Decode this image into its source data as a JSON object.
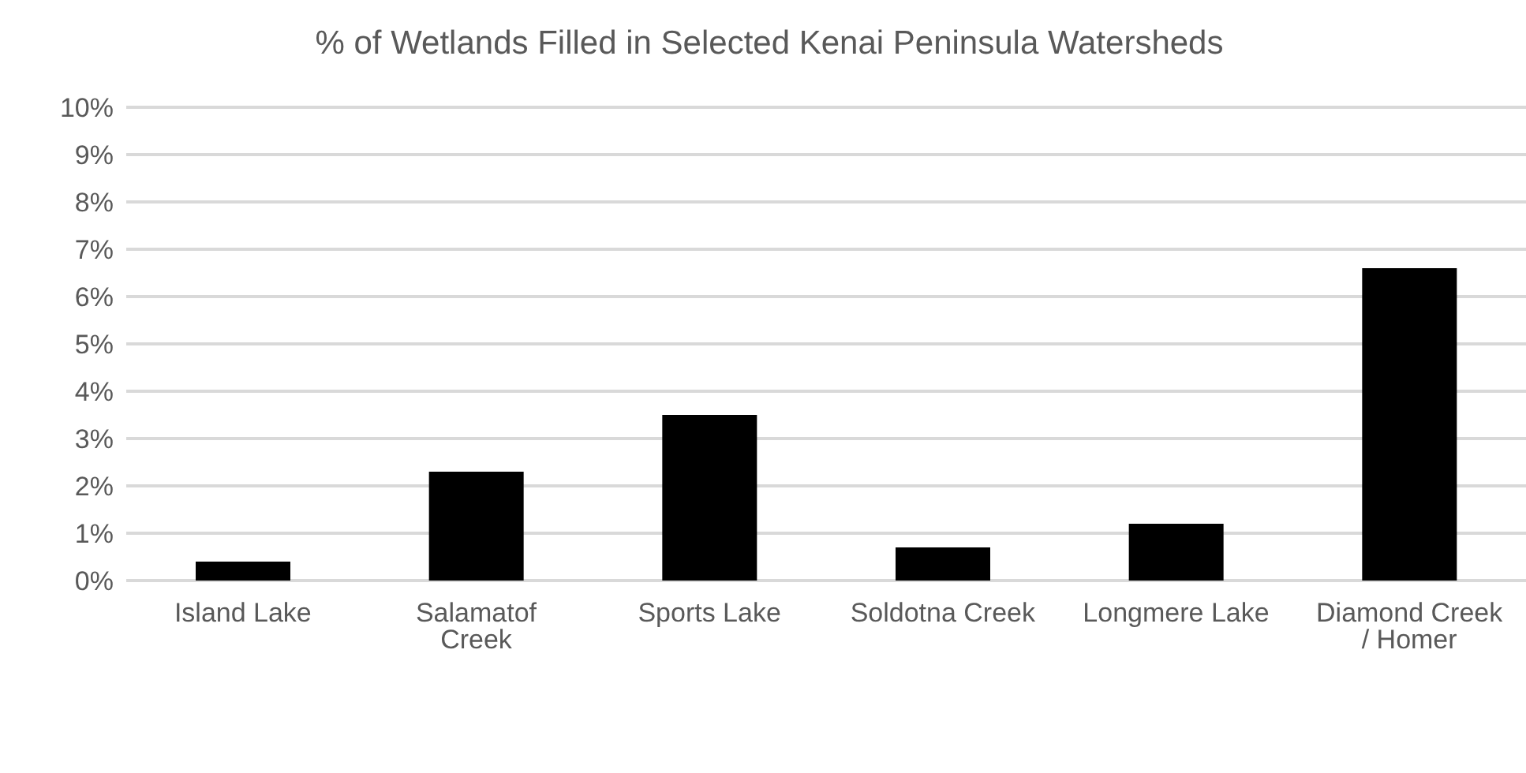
{
  "chart_data": {
    "type": "bar",
    "title": "% of Wetlands Filled in Selected Kenai Peninsula Watersheds",
    "categories": [
      "Island Lake",
      "Salamatof Creek",
      "Sports Lake",
      "Soldotna Creek",
      "Longmere Lake",
      "Diamond Creek / Homer"
    ],
    "values": [
      0.4,
      2.3,
      3.5,
      0.7,
      1.2,
      6.6
    ],
    "color": "#000000",
    "ylim": [
      0,
      10
    ],
    "yticks": [
      {
        "value": 0,
        "label": "0%"
      },
      {
        "value": 1,
        "label": "1%"
      },
      {
        "value": 2,
        "label": "2%"
      },
      {
        "value": 3,
        "label": "3%"
      },
      {
        "value": 4,
        "label": "4%"
      },
      {
        "value": 5,
        "label": "5%"
      },
      {
        "value": 6,
        "label": "6%"
      },
      {
        "value": 7,
        "label": "7%"
      },
      {
        "value": 8,
        "label": "8%"
      },
      {
        "value": 9,
        "label": "9%"
      },
      {
        "value": 10,
        "label": "10%"
      }
    ],
    "grid": "y",
    "legend": false
  }
}
